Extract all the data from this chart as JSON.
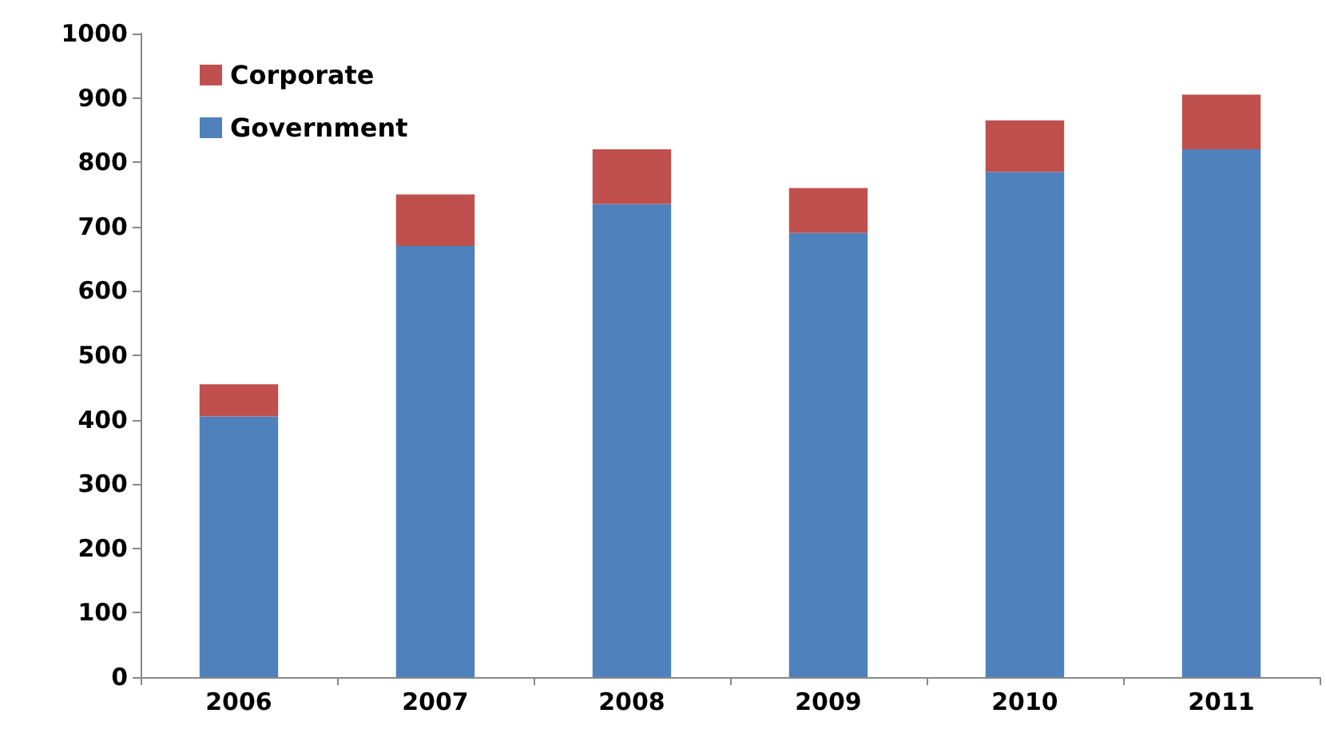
{
  "chart_data": {
    "type": "bar",
    "stacked": true,
    "categories": [
      "2006",
      "2007",
      "2008",
      "2009",
      "2010",
      "2011"
    ],
    "series": [
      {
        "name": "Government",
        "color": "#4f81bd",
        "values": [
          405,
          670,
          735,
          690,
          785,
          820
        ]
      },
      {
        "name": "Corporate",
        "color": "#c0504d",
        "values": [
          50,
          80,
          85,
          70,
          80,
          85
        ]
      }
    ],
    "ylim": [
      0,
      1000
    ],
    "yticks": [
      0,
      100,
      200,
      300,
      400,
      500,
      600,
      700,
      800,
      900,
      1000
    ],
    "grid": false,
    "legend": "top left"
  }
}
